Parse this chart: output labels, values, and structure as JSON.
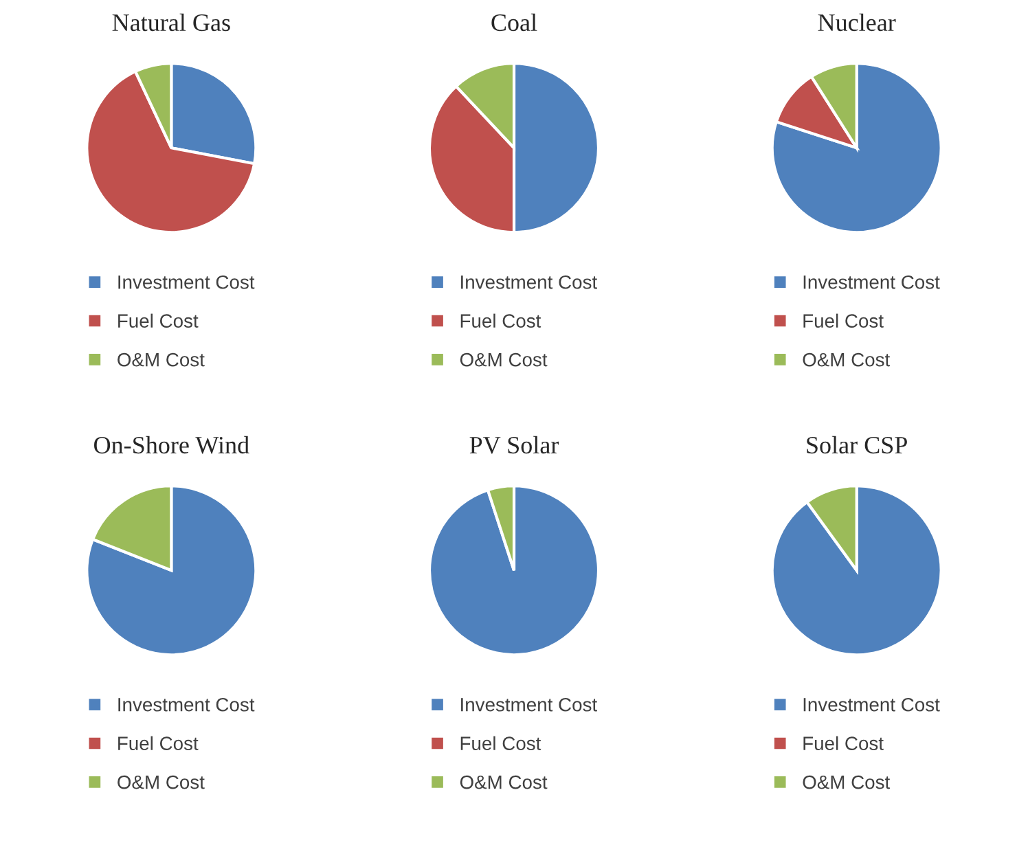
{
  "chart_data": [
    {
      "type": "pie",
      "title": "Natural Gas",
      "categories": [
        "Investment Cost",
        "Fuel Cost",
        "O&M Cost"
      ],
      "values": [
        28,
        65,
        7
      ],
      "colors": [
        "#4f81bd",
        "#c0504d",
        "#9bbb59"
      ],
      "legend": "bottom"
    },
    {
      "type": "pie",
      "title": "Coal",
      "categories": [
        "Investment Cost",
        "Fuel Cost",
        "O&M Cost"
      ],
      "values": [
        50,
        38,
        12
      ],
      "colors": [
        "#4f81bd",
        "#c0504d",
        "#9bbb59"
      ],
      "legend": "bottom"
    },
    {
      "type": "pie",
      "title": "Nuclear",
      "categories": [
        "Investment Cost",
        "Fuel Cost",
        "O&M Cost"
      ],
      "values": [
        80,
        11,
        9
      ],
      "colors": [
        "#4f81bd",
        "#c0504d",
        "#9bbb59"
      ],
      "legend": "bottom"
    },
    {
      "type": "pie",
      "title": "On-Shore Wind",
      "categories": [
        "Investment Cost",
        "Fuel Cost",
        "O&M Cost"
      ],
      "values": [
        81,
        0,
        19
      ],
      "colors": [
        "#4f81bd",
        "#c0504d",
        "#9bbb59"
      ],
      "legend": "bottom"
    },
    {
      "type": "pie",
      "title": "PV Solar",
      "categories": [
        "Investment Cost",
        "Fuel Cost",
        "O&M Cost"
      ],
      "values": [
        95,
        0,
        5
      ],
      "colors": [
        "#4f81bd",
        "#c0504d",
        "#9bbb59"
      ],
      "legend": "bottom"
    },
    {
      "type": "pie",
      "title": "Solar CSP",
      "categories": [
        "Investment Cost",
        "Fuel Cost",
        "O&M Cost"
      ],
      "values": [
        90,
        0,
        10
      ],
      "colors": [
        "#4f81bd",
        "#c0504d",
        "#9bbb59"
      ],
      "legend": "bottom"
    }
  ]
}
